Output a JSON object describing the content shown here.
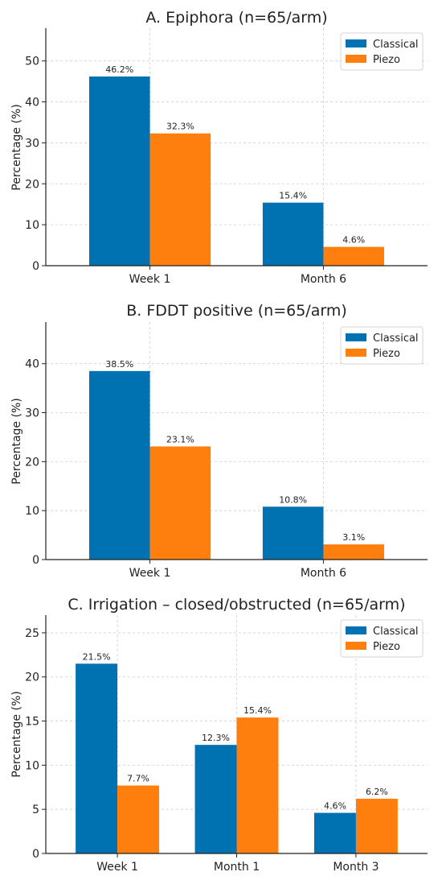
{
  "colors": {
    "classical": "#0072b2",
    "piezo": "#ff7f0e",
    "grid": "#cfcfcf",
    "axis": "#222222"
  },
  "chart_data": [
    {
      "type": "bar",
      "title": "A. Epiphora (n=65/arm)",
      "xlabel": "",
      "ylabel": "Percentage (%)",
      "categories": [
        "Week 1",
        "Month 6"
      ],
      "series": [
        {
          "name": "Classical",
          "values": [
            46.2,
            15.4
          ],
          "labels": [
            "46.2%",
            "15.4%"
          ]
        },
        {
          "name": "Piezo",
          "values": [
            32.3,
            4.6
          ],
          "labels": [
            "32.3%",
            "4.6%"
          ]
        }
      ],
      "ylim": [
        0,
        58
      ],
      "yticks": [
        "0",
        "10",
        "20",
        "30",
        "40",
        "50"
      ],
      "grid": true,
      "legend": "top-right"
    },
    {
      "type": "bar",
      "title": "B. FDDT positive (n=65/arm)",
      "xlabel": "",
      "ylabel": "Percentage (%)",
      "categories": [
        "Week 1",
        "Month 6"
      ],
      "series": [
        {
          "name": "Classical",
          "values": [
            38.5,
            10.8
          ],
          "labels": [
            "38.5%",
            "10.8%"
          ]
        },
        {
          "name": "Piezo",
          "values": [
            23.1,
            3.1
          ],
          "labels": [
            "23.1%",
            "3.1%"
          ]
        }
      ],
      "ylim": [
        0,
        48.5
      ],
      "yticks": [
        "0",
        "10",
        "20",
        "30",
        "40"
      ],
      "grid": true,
      "legend": "top-right"
    },
    {
      "type": "bar",
      "title": "C. Irrigation – closed/obstructed (n=65/arm)",
      "xlabel": "",
      "ylabel": "Percentage (%)",
      "categories": [
        "Week 1",
        "Month 1",
        "Month 3"
      ],
      "series": [
        {
          "name": "Classical",
          "values": [
            21.5,
            12.3,
            4.6
          ],
          "labels": [
            "21.5%",
            "12.3%",
            "4.6%"
          ]
        },
        {
          "name": "Piezo",
          "values": [
            7.7,
            15.4,
            6.2
          ],
          "labels": [
            "7.7%",
            "15.4%",
            "6.2%"
          ]
        }
      ],
      "ylim": [
        0,
        27
      ],
      "yticks": [
        "0",
        "5",
        "10",
        "15",
        "20",
        "25"
      ],
      "grid": true,
      "legend": "top-right"
    }
  ]
}
